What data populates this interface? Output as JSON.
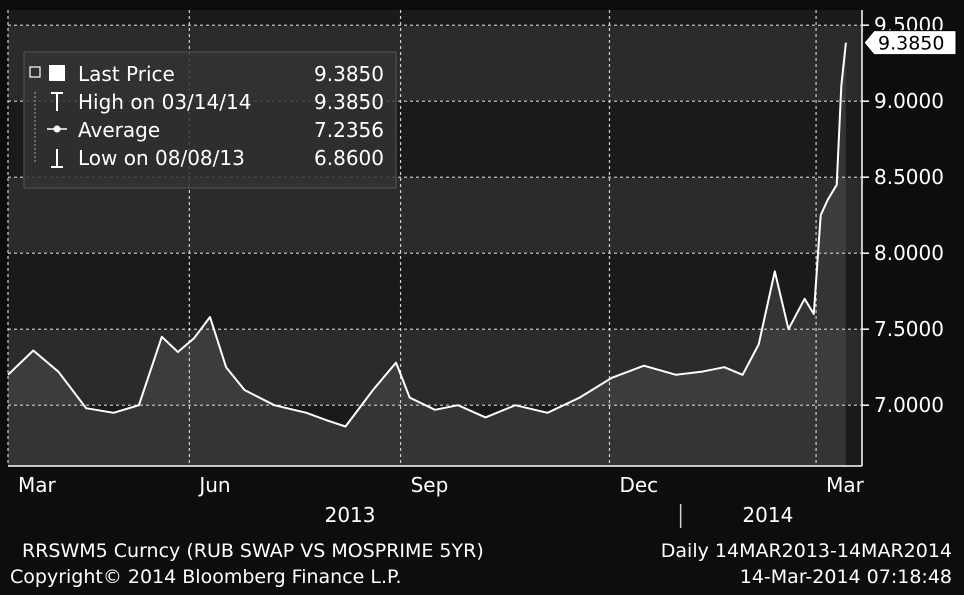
{
  "chart_data": {
    "type": "line",
    "series": [
      {
        "name": "Last Price",
        "dates": [
          "2013-03-14",
          "2013-03-25",
          "2013-04-05",
          "2013-04-17",
          "2013-04-29",
          "2013-05-10",
          "2013-05-20",
          "2013-05-27",
          "2013-06-03",
          "2013-06-10",
          "2013-06-17",
          "2013-06-25",
          "2013-07-08",
          "2013-07-22",
          "2013-07-31",
          "2013-08-08",
          "2013-08-20",
          "2013-08-30",
          "2013-09-05",
          "2013-09-16",
          "2013-09-26",
          "2013-10-08",
          "2013-10-21",
          "2013-11-04",
          "2013-11-18",
          "2013-12-02",
          "2013-12-16",
          "2013-12-30",
          "2014-01-10",
          "2014-01-20",
          "2014-01-28",
          "2014-02-04",
          "2014-02-11",
          "2014-02-17",
          "2014-02-24",
          "2014-02-28",
          "2014-03-03",
          "2014-03-06",
          "2014-03-10",
          "2014-03-12",
          "2014-03-14"
        ],
        "values": [
          7.2,
          7.36,
          7.22,
          6.98,
          6.95,
          7.0,
          7.45,
          7.35,
          7.44,
          7.58,
          7.25,
          7.1,
          7.0,
          6.95,
          6.9,
          6.86,
          7.1,
          7.28,
          7.05,
          6.97,
          7.0,
          6.92,
          7.0,
          6.95,
          7.05,
          7.18,
          7.26,
          7.2,
          7.22,
          7.25,
          7.2,
          7.4,
          7.88,
          7.5,
          7.7,
          7.6,
          8.25,
          8.35,
          8.45,
          9.1,
          9.385
        ]
      }
    ],
    "legend": [
      {
        "label": "Last Price",
        "value": "9.3850"
      },
      {
        "label": "High on 03/14/14",
        "value": "9.3850"
      },
      {
        "label": "Average",
        "value": "7.2356"
      },
      {
        "label": "Low on 08/08/13",
        "value": "6.8600"
      }
    ],
    "last_value_label": "9.3850",
    "legend_position": "top-left",
    "y_axis": {
      "position": "right",
      "ylim": [
        6.6,
        9.6
      ],
      "ticks": [
        7.0,
        7.5,
        8.0,
        8.5,
        9.0,
        9.5
      ],
      "tick_labels": [
        "7.0000",
        "7.5000",
        "8.0000",
        "8.5000",
        "9.0000",
        "9.5000"
      ]
    },
    "x_axis": {
      "range": [
        "2013-03-14",
        "2014-03-21"
      ],
      "month_ticks": [
        {
          "label": "Mar",
          "date": "2013-03-14"
        },
        {
          "label": "Jun",
          "date": "2013-06-01"
        },
        {
          "label": "Sep",
          "date": "2013-09-01"
        },
        {
          "label": "Dec",
          "date": "2013-12-01"
        },
        {
          "label": "Mar",
          "date": "2014-03-01"
        }
      ],
      "year_labels": [
        {
          "label": "2013",
          "date": "2013-08-10"
        },
        {
          "label": "2014",
          "date": "2014-02-08"
        }
      ],
      "year_divider_date": "2014-01-01"
    },
    "grid": true,
    "footer_left": "RRSWM5 Curncy (RUB SWAP VS MOSPRIME 5YR)",
    "footer_right": "Daily 14MAR2013-14MAR2014",
    "copyright": "Copyright© 2014 Bloomberg Finance L.P.",
    "timestamp": "14-Mar-2014 07:18:48",
    "colors": {
      "background": "#0d0d0d",
      "plot_band_dark": "#1a1a1a",
      "plot_band_light": "#2b2b2b",
      "line": "#ffffff",
      "area": "#4a4a4a",
      "grid": "#d0d0d0",
      "text": "#ffffff"
    }
  }
}
